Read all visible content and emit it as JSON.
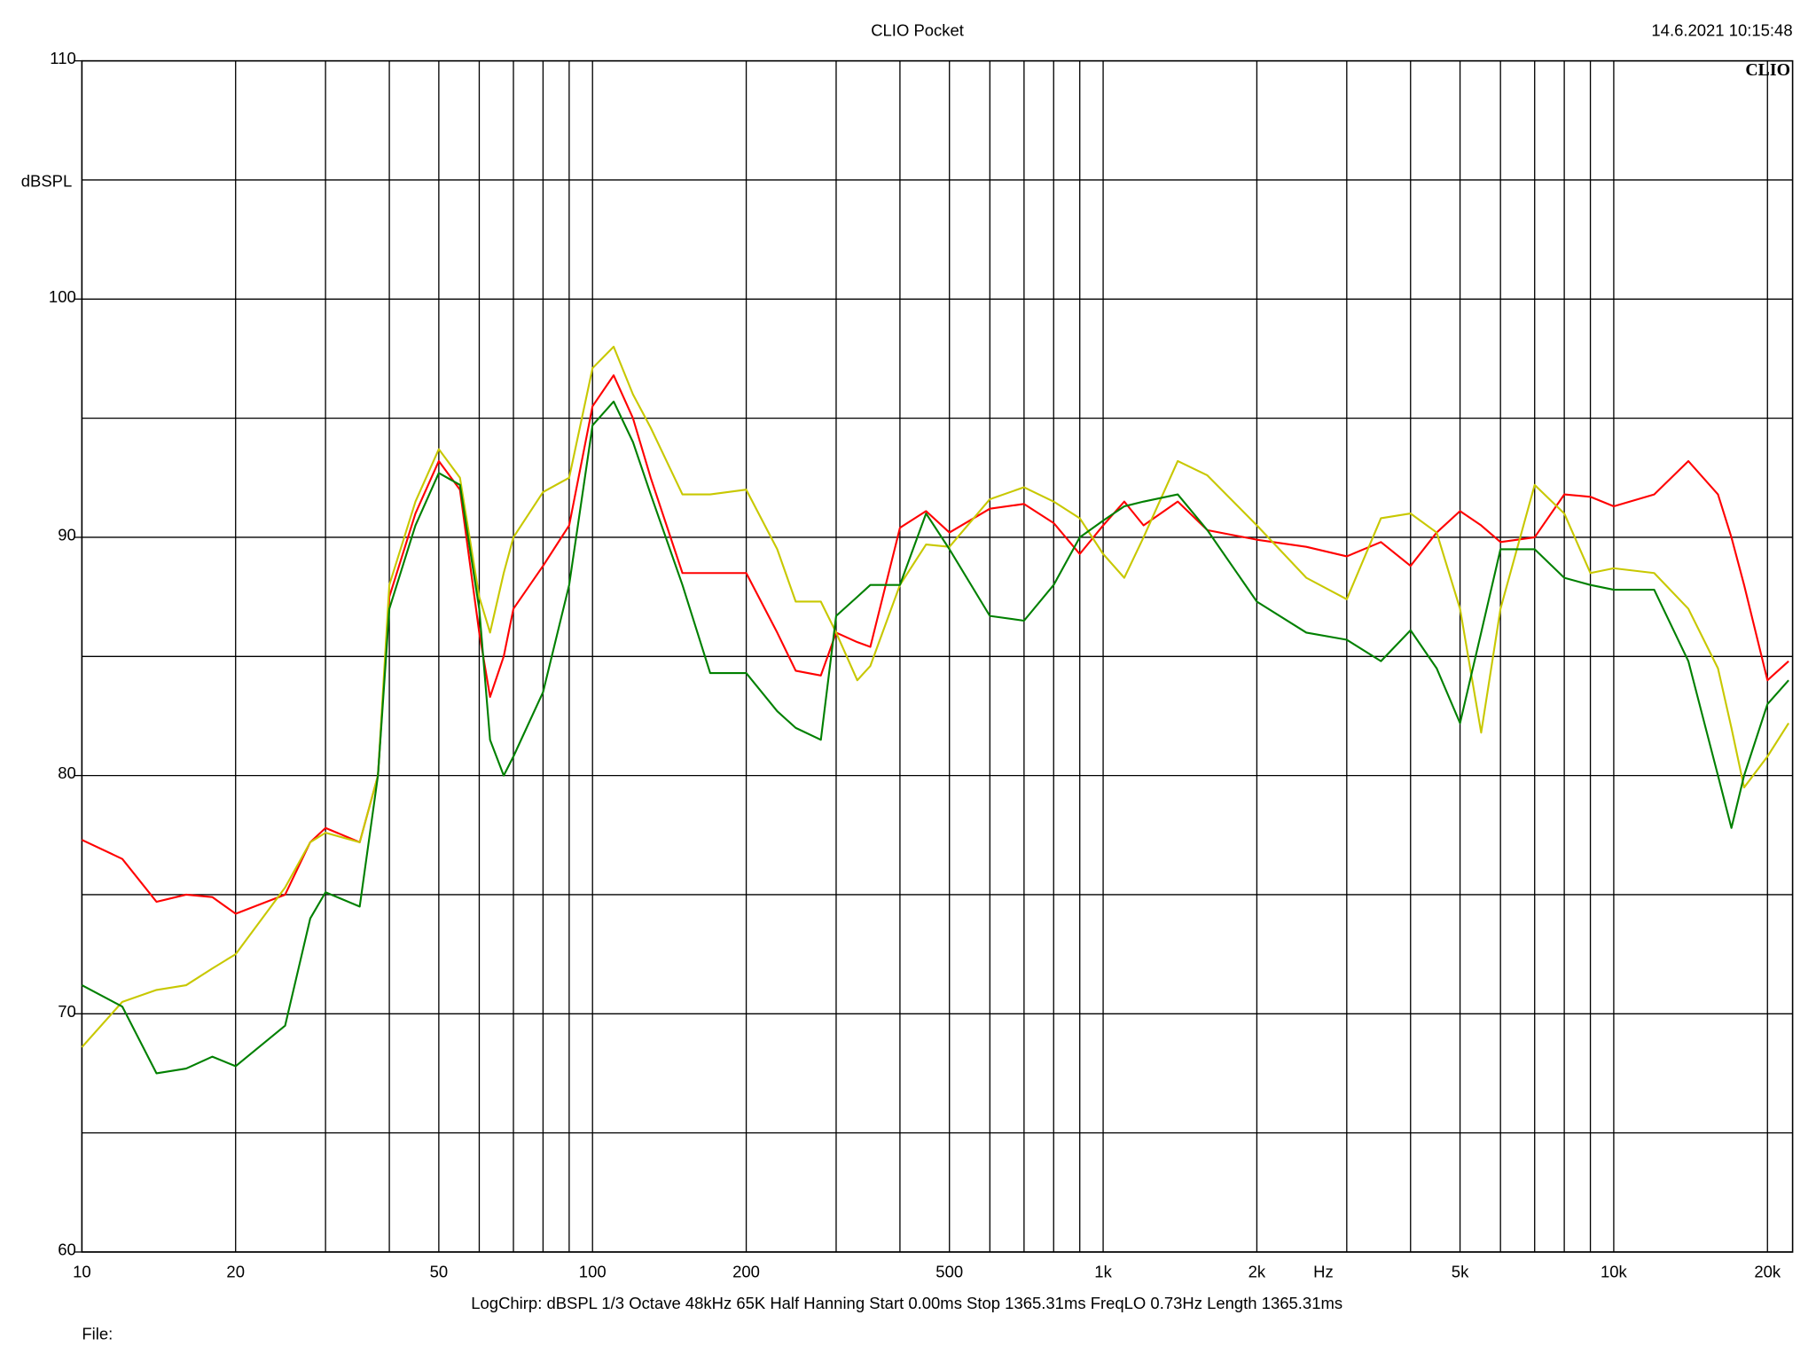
{
  "chart_data": {
    "type": "line",
    "title": "CLIO Pocket",
    "timestamp": "14.6.2021 10:15:48",
    "logo": "CLIO",
    "y_label": "dBSPL",
    "x_label": "Hz",
    "footer": "LogChirp:  dBSPL   1/3 Octave   48kHz   65K   Half Hanning   Start 0.00ms    Stop 1365.31ms    FreqLO 0.73Hz    Length 1365.31ms",
    "file_label": "File:",
    "x_log": true,
    "grid": true,
    "xlim": [
      10,
      22400
    ],
    "ylim": [
      60,
      110
    ],
    "xticks": [
      10,
      20,
      50,
      100,
      200,
      500,
      {
        "value": 1000,
        "label": "1k"
      },
      {
        "value": 2000,
        "label": "2k"
      },
      {
        "value": 5000,
        "label": "5k"
      },
      {
        "value": 10000,
        "label": "10k"
      },
      {
        "value": 20000,
        "label": "20k"
      }
    ],
    "xminor_ticks": [
      30,
      40,
      60,
      70,
      80,
      90,
      300,
      400,
      600,
      700,
      800,
      900,
      3000,
      4000,
      6000,
      7000,
      8000,
      9000
    ],
    "yticks": [
      60,
      70,
      80,
      90,
      100,
      110
    ],
    "yminor_ticks": [
      65,
      75,
      85,
      95,
      105
    ],
    "x": [
      10,
      12,
      14,
      16,
      18,
      20,
      25,
      28,
      30,
      35,
      38,
      40,
      45,
      50,
      55,
      60,
      63,
      67,
      70,
      80,
      90,
      100,
      110,
      120,
      130,
      150,
      170,
      200,
      230,
      250,
      280,
      300,
      330,
      350,
      400,
      450,
      500,
      600,
      700,
      800,
      900,
      1000,
      1100,
      1200,
      1400,
      1600,
      2000,
      2500,
      3000,
      3500,
      4000,
      4500,
      5000,
      5500,
      6000,
      7000,
      8000,
      9000,
      10000,
      12000,
      14000,
      16000,
      17000,
      18000,
      20000,
      22000
    ],
    "series": [
      {
        "color": "#ff0000",
        "values": [
          77.3,
          76.5,
          74.7,
          75,
          74.9,
          74.2,
          75,
          77.2,
          77.8,
          77.2,
          80,
          87.5,
          91,
          93.2,
          92,
          86,
          83.3,
          85,
          87,
          88.8,
          90.5,
          95.5,
          96.8,
          95,
          92.5,
          88.5,
          88.5,
          88.5,
          86,
          84.4,
          84.2,
          86,
          85.6,
          85.4,
          90.4,
          91.1,
          90.2,
          91.2,
          91.4,
          90.6,
          89.3,
          90.5,
          91.5,
          90.5,
          91.5,
          90.3,
          89.9,
          89.6,
          89.2,
          89.8,
          88.8,
          90.2,
          91.1,
          90.5,
          89.8,
          90,
          91.8,
          91.7,
          91.3,
          91.8,
          93.2,
          91.8,
          90,
          88,
          84,
          84.8
        ]
      },
      {
        "color": "#c8c800",
        "values": [
          68.6,
          70.5,
          71,
          71.2,
          71.9,
          72.5,
          75.3,
          77.2,
          77.6,
          77.2,
          80,
          88,
          91.5,
          93.7,
          92.5,
          87.5,
          86,
          88.5,
          90,
          91.9,
          92.5,
          97.1,
          98,
          96,
          94.6,
          91.8,
          91.8,
          92,
          89.5,
          87.3,
          87.3,
          86,
          84,
          84.6,
          88,
          89.7,
          89.6,
          91.6,
          92.1,
          91.5,
          90.8,
          89.3,
          88.3,
          90,
          93.2,
          92.6,
          90.5,
          88.3,
          87.4,
          90.8,
          91,
          90.2,
          87,
          81.8,
          87,
          92.2,
          91,
          88.5,
          88.7,
          88.5,
          87,
          84.5,
          82,
          79.5,
          80.8,
          82.2
        ]
      },
      {
        "color": "#008000",
        "values": [
          71.2,
          70.3,
          67.5,
          67.7,
          68.2,
          67.8,
          69.5,
          74,
          75.1,
          74.5,
          80,
          87,
          90.5,
          92.7,
          92.2,
          87,
          81.5,
          80,
          80.8,
          83.5,
          88,
          94.7,
          95.7,
          94,
          91.8,
          88,
          84.3,
          84.3,
          82.7,
          82,
          81.5,
          86.7,
          87.5,
          88,
          88,
          91,
          89.5,
          86.7,
          86.5,
          88,
          90,
          90.7,
          91.3,
          91.5,
          91.8,
          90.3,
          87.3,
          86,
          85.7,
          84.8,
          86.1,
          84.5,
          82.2,
          86,
          89.5,
          89.5,
          88.3,
          88,
          87.8,
          87.8,
          84.8,
          80,
          77.8,
          80,
          83,
          84
        ]
      }
    ]
  }
}
